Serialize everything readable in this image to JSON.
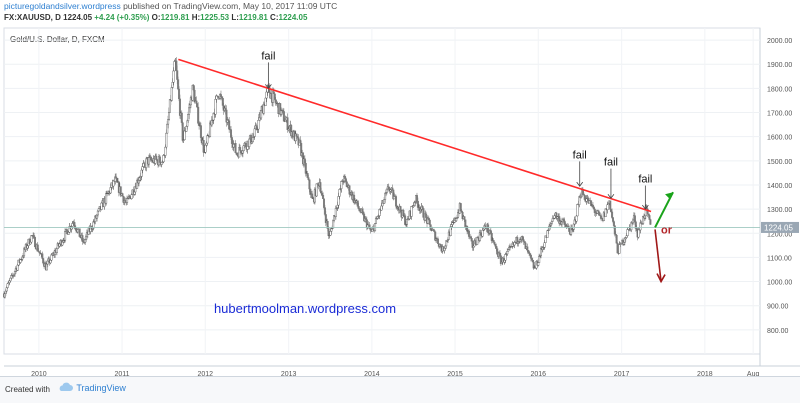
{
  "header": {
    "site": "picturegoldandsilver.wordpress",
    "published": "published on TradingView.com, May 10, 2017 11:09 UTC",
    "ticker": "FX:XAUUSD, D",
    "last": "1224.05",
    "change": "+4.24 (+0.35%)",
    "o_label": "O:",
    "o_value": "1219.81",
    "h_label": "H:",
    "h_value": "1225.53",
    "l_label": "L:",
    "l_value": "1219.81",
    "c_label": "C:",
    "c_value": "1224.05"
  },
  "footer": {
    "created_with": "Created with",
    "brand": "TradingView",
    "brand_icon": "tradingview-cloud-icon"
  },
  "colors": {
    "candle_up": "#4a4a4a",
    "candle_down": "#7a7a7a",
    "trendline": "#ff2a2a",
    "arrow_up": "#1aa31a",
    "arrow_down": "#a01818",
    "price_tag": "#9aa7b4",
    "watermark": "#1a2bd6"
  },
  "chart_data": {
    "type": "candlestick",
    "title": "Gold/U.S. Dollar, D, FXCM",
    "x_range": [
      "2009-08-01",
      "2018-08-31"
    ],
    "ylim": [
      700,
      2050
    ],
    "yticks": [
      800,
      900,
      1000,
      1100,
      1200,
      1300,
      1400,
      1500,
      1600,
      1700,
      1800,
      1900,
      2000
    ],
    "xticks": [
      {
        "date": "2010-01-01",
        "label": "2010"
      },
      {
        "date": "2011-01-01",
        "label": "2011"
      },
      {
        "date": "2012-01-01",
        "label": "2012"
      },
      {
        "date": "2013-01-01",
        "label": "2013"
      },
      {
        "date": "2014-01-01",
        "label": "2014"
      },
      {
        "date": "2015-01-01",
        "label": "2015"
      },
      {
        "date": "2016-01-01",
        "label": "2016"
      },
      {
        "date": "2017-01-01",
        "label": "2017"
      },
      {
        "date": "2018-01-01",
        "label": "2018"
      },
      {
        "date": "2018-08-01",
        "label": "Aug"
      }
    ],
    "price_path": [
      [
        "2009-08-01",
        950
      ],
      [
        "2009-12-01",
        1190
      ],
      [
        "2010-02-01",
        1060
      ],
      [
        "2010-06-01",
        1250
      ],
      [
        "2010-07-15",
        1160
      ],
      [
        "2010-12-01",
        1420
      ],
      [
        "2011-01-20",
        1320
      ],
      [
        "2011-04-20",
        1500
      ],
      [
        "2011-07-01",
        1500
      ],
      [
        "2011-08-22",
        1910
      ],
      [
        "2011-09-26",
        1580
      ],
      [
        "2011-11-08",
        1800
      ],
      [
        "2011-12-29",
        1530
      ],
      [
        "2012-02-28",
        1790
      ],
      [
        "2012-05-16",
        1530
      ],
      [
        "2012-08-01",
        1600
      ],
      [
        "2012-10-04",
        1795
      ],
      [
        "2012-12-28",
        1650
      ],
      [
        "2013-02-20",
        1560
      ],
      [
        "2013-04-16",
        1330
      ],
      [
        "2013-05-15",
        1420
      ],
      [
        "2013-06-28",
        1180
      ],
      [
        "2013-08-27",
        1430
      ],
      [
        "2013-12-31",
        1200
      ],
      [
        "2014-03-17",
        1390
      ],
      [
        "2014-06-03",
        1240
      ],
      [
        "2014-07-10",
        1345
      ],
      [
        "2014-11-07",
        1130
      ],
      [
        "2015-01-22",
        1305
      ],
      [
        "2015-03-17",
        1145
      ],
      [
        "2015-05-18",
        1230
      ],
      [
        "2015-07-24",
        1080
      ],
      [
        "2015-10-14",
        1190
      ],
      [
        "2015-12-17",
        1050
      ],
      [
        "2016-03-11",
        1280
      ],
      [
        "2016-05-30",
        1200
      ],
      [
        "2016-07-06",
        1375
      ],
      [
        "2016-10-07",
        1250
      ],
      [
        "2016-11-08",
        1335
      ],
      [
        "2016-12-15",
        1125
      ],
      [
        "2017-02-27",
        1265
      ],
      [
        "2017-03-10",
        1195
      ],
      [
        "2017-04-17",
        1295
      ],
      [
        "2017-05-10",
        1224
      ]
    ],
    "trendline": {
      "start": [
        "2011-09-05",
        1920
      ],
      "end": [
        "2017-05-10",
        1290
      ]
    },
    "hline": 1224.05,
    "price_label": "1224.05",
    "annotations": [
      {
        "text": "fail",
        "x": "2012-10-04",
        "y": 1920,
        "arrow_to": 1800
      },
      {
        "text": "fail",
        "x": "2016-07-01",
        "y": 1510,
        "arrow_to": 1395
      },
      {
        "text": "fail",
        "x": "2016-11-15",
        "y": 1480,
        "arrow_to": 1345
      },
      {
        "text": "fail",
        "x": "2017-04-15",
        "y": 1410,
        "arrow_to": 1300
      }
    ],
    "scenario": {
      "or_label": "or",
      "up_target": 1370,
      "down_target": 1000
    },
    "watermark": "hubertmoolman.wordpress.com"
  }
}
